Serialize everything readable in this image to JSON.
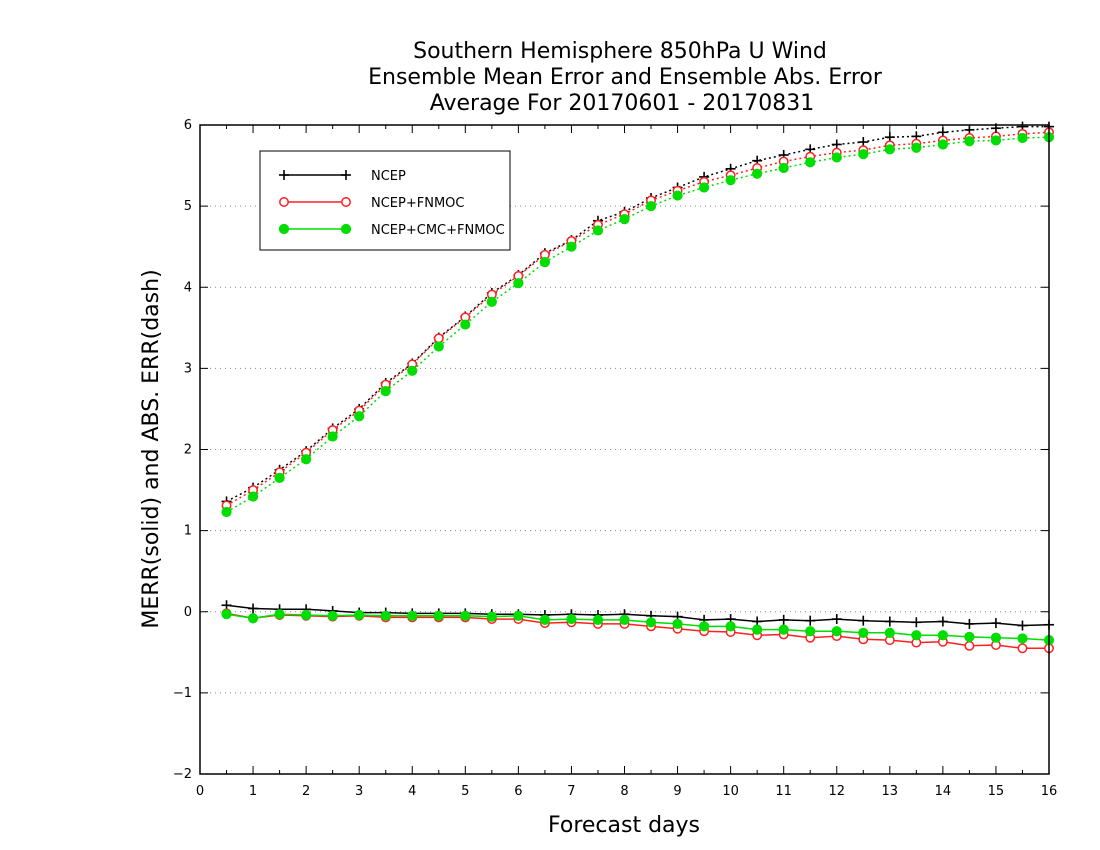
{
  "chart_data": {
    "type": "line",
    "title": [
      "Southern Hemisphere 850hPa U Wind",
      "Ensemble Mean Error and Ensemble Abs. Error",
      "Average For 20170601 - 20170831"
    ],
    "xlabel": "Forecast days",
    "ylabel": "MERR(solid) and ABS. ERR(dash)",
    "xlim": [
      0,
      16
    ],
    "ylim": [
      -2,
      6
    ],
    "xticks": [
      "0",
      "1",
      "2",
      "3",
      "4",
      "5",
      "6",
      "7",
      "8",
      "9",
      "10",
      "11",
      "12",
      "13",
      "14",
      "15",
      "16"
    ],
    "yticks": [
      "−2",
      "−1",
      "0",
      "1",
      "2",
      "3",
      "4",
      "5",
      "6"
    ],
    "grid": "horizontal dotted",
    "legend_position": "top-left",
    "x": [
      0.5,
      1,
      1.5,
      2,
      2.5,
      3,
      3.5,
      4,
      4.5,
      5,
      5.5,
      6,
      6.5,
      7,
      7.5,
      8,
      8.5,
      9,
      9.5,
      10,
      10.5,
      11,
      11.5,
      12,
      12.5,
      13,
      13.5,
      14,
      14.5,
      15,
      15.5,
      16
    ],
    "series": [
      {
        "name": "NCEP",
        "color": "#000000",
        "marker": "plus",
        "merr": [
          0.08,
          0.04,
          0.03,
          0.03,
          0.01,
          -0.01,
          -0.01,
          -0.02,
          -0.02,
          -0.02,
          -0.03,
          -0.03,
          -0.04,
          -0.03,
          -0.04,
          -0.03,
          -0.05,
          -0.06,
          -0.1,
          -0.09,
          -0.12,
          -0.1,
          -0.11,
          -0.09,
          -0.11,
          -0.12,
          -0.13,
          -0.12,
          -0.15,
          -0.14,
          -0.17,
          -0.16
        ],
        "abs_err": [
          1.36,
          1.53,
          1.75,
          1.98,
          2.26,
          2.5,
          2.82,
          3.06,
          3.38,
          3.64,
          3.93,
          4.15,
          4.42,
          4.58,
          4.82,
          4.93,
          5.1,
          5.23,
          5.36,
          5.46,
          5.56,
          5.63,
          5.7,
          5.76,
          5.79,
          5.85,
          5.86,
          5.91,
          5.94,
          5.96,
          5.98,
          5.98
        ]
      },
      {
        "name": "NCEP+FNMOC",
        "color": "#ff2020",
        "marker": "open-circle",
        "merr": [
          -0.02,
          -0.08,
          -0.04,
          -0.05,
          -0.06,
          -0.05,
          -0.07,
          -0.07,
          -0.07,
          -0.07,
          -0.09,
          -0.09,
          -0.14,
          -0.13,
          -0.15,
          -0.15,
          -0.18,
          -0.21,
          -0.24,
          -0.25,
          -0.29,
          -0.28,
          -0.32,
          -0.3,
          -0.34,
          -0.35,
          -0.38,
          -0.37,
          -0.42,
          -0.41,
          -0.45,
          -0.45
        ],
        "abs_err": [
          1.31,
          1.5,
          1.72,
          1.96,
          2.24,
          2.48,
          2.8,
          3.05,
          3.37,
          3.63,
          3.91,
          4.14,
          4.4,
          4.57,
          4.77,
          4.9,
          5.07,
          5.19,
          5.3,
          5.38,
          5.47,
          5.55,
          5.61,
          5.66,
          5.69,
          5.75,
          5.77,
          5.81,
          5.84,
          5.86,
          5.89,
          5.91
        ]
      },
      {
        "name": "NCEP+CMC+FNMOC",
        "color": "#00dd00",
        "marker": "filled-circle",
        "merr": [
          -0.03,
          -0.08,
          -0.03,
          -0.04,
          -0.05,
          -0.04,
          -0.05,
          -0.05,
          -0.05,
          -0.05,
          -0.06,
          -0.05,
          -0.1,
          -0.09,
          -0.1,
          -0.1,
          -0.13,
          -0.15,
          -0.18,
          -0.18,
          -0.22,
          -0.22,
          -0.24,
          -0.24,
          -0.26,
          -0.26,
          -0.29,
          -0.29,
          -0.31,
          -0.32,
          -0.33,
          -0.35
        ],
        "abs_err": [
          1.23,
          1.42,
          1.65,
          1.88,
          2.16,
          2.41,
          2.72,
          2.97,
          3.27,
          3.54,
          3.82,
          4.05,
          4.31,
          4.5,
          4.7,
          4.84,
          5.0,
          5.13,
          5.23,
          5.32,
          5.4,
          5.47,
          5.54,
          5.6,
          5.64,
          5.7,
          5.72,
          5.76,
          5.8,
          5.81,
          5.84,
          5.85
        ]
      }
    ]
  }
}
